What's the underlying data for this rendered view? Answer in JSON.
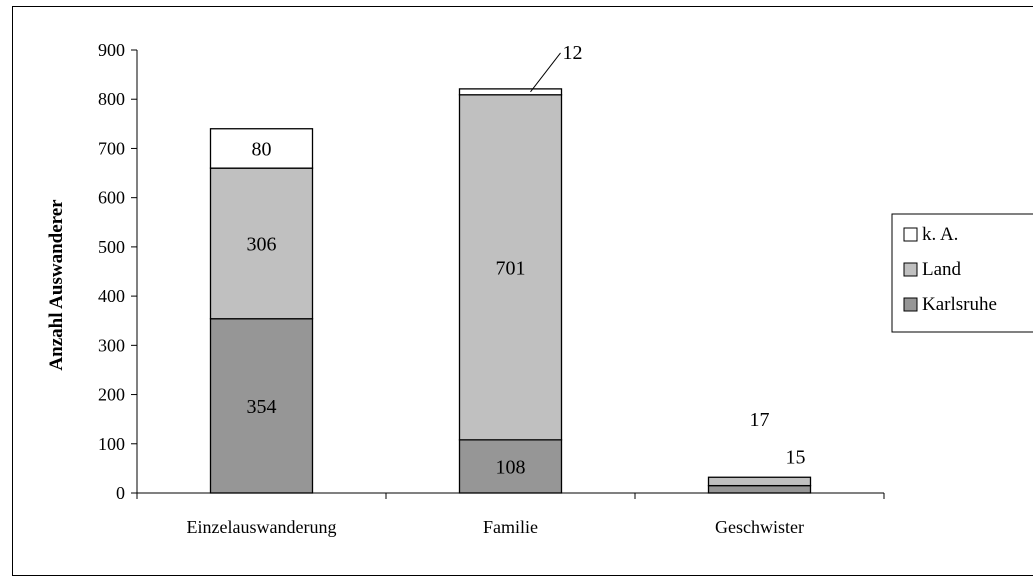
{
  "chart_data": {
    "type": "bar",
    "stacked": true,
    "title": "",
    "xlabel": "",
    "ylabel": "Anzahl Auswanderer",
    "ylim": [
      0,
      900
    ],
    "yticks": [
      0,
      100,
      200,
      300,
      400,
      500,
      600,
      700,
      800,
      900
    ],
    "yticklabels": [
      "0",
      "100",
      "200",
      "300",
      "400",
      "500",
      "600",
      "700",
      "800",
      "900"
    ],
    "grid": false,
    "legend_position": "right",
    "categories": [
      "Einzelauswanderung",
      "Familie",
      "Geschwister"
    ],
    "series": [
      {
        "name": "Karlsruhe",
        "color": "#969696",
        "values": [
          354,
          108,
          15
        ],
        "labels": [
          "354",
          "108",
          "15"
        ]
      },
      {
        "name": "Land",
        "color": "#c0c0c0",
        "values": [
          306,
          701,
          17
        ],
        "labels": [
          "306",
          "701",
          "17"
        ]
      },
      {
        "name": "k. A.",
        "color": "#ffffff",
        "values": [
          80,
          12,
          0
        ],
        "labels": [
          "80",
          "12",
          ""
        ]
      }
    ]
  }
}
